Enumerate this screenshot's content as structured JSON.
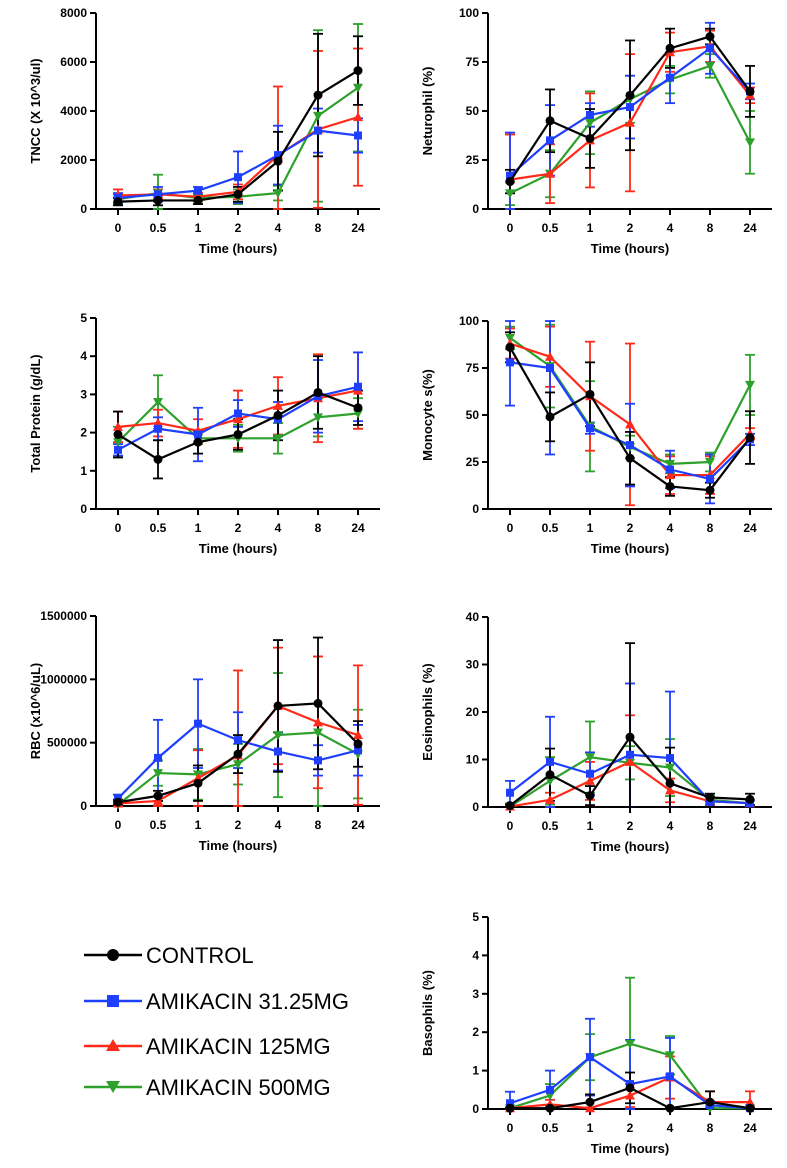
{
  "figure": {
    "series_names": [
      "CONTROL",
      "AMIKACIN 31.25MG",
      "AMIKACIN 125MG",
      "AMIKACIN 500MG"
    ],
    "series_colors": [
      "#000000",
      "#1f3fff",
      "#ff2a1a",
      "#2ea02c"
    ],
    "series_markers": [
      "circle",
      "square",
      "triangle-up",
      "triangle-down"
    ]
  },
  "legend": {
    "items": [
      {
        "label": "CONTROL",
        "color": "#000000",
        "marker": "circle"
      },
      {
        "label": "AMIKACIN 31.25MG",
        "color": "#1f3fff",
        "marker": "square"
      },
      {
        "label": "AMIKACIN 125MG",
        "color": "#ff2a1a",
        "marker": "triangle-up"
      },
      {
        "label": "AMIKACIN 500MG",
        "color": "#2ea02c",
        "marker": "triangle-down"
      }
    ]
  },
  "chart_data": [
    {
      "id": "tncc",
      "type": "line",
      "ylabel": "TNCC (X 10^3/ul)",
      "xlabel": "Time (hours)",
      "categories": [
        "0",
        "0.5",
        "1",
        "2",
        "4",
        "8",
        "24"
      ],
      "ylim": [
        0,
        8000
      ],
      "yticks": [
        0,
        2000,
        4000,
        6000,
        8000
      ],
      "ytick_labels": [
        "0",
        "2000",
        "4000",
        "6000",
        "8000"
      ],
      "series": [
        {
          "name": "CONTROL",
          "values": [
            300,
            350,
            350,
            600,
            1950,
            4650,
            5650
          ],
          "err": [
            150,
            200,
            150,
            300,
            1200,
            2500,
            1400
          ]
        },
        {
          "name": "AMIKACIN 31.25MG",
          "values": [
            450,
            600,
            750,
            1300,
            2200,
            3200,
            3000
          ],
          "err": [
            200,
            300,
            150,
            1050,
            1200,
            900,
            700
          ]
        },
        {
          "name": "AMIKACIN 125MG",
          "values": [
            550,
            600,
            500,
            700,
            2200,
            3250,
            3750
          ],
          "err": [
            250,
            200,
            150,
            300,
            2800,
            3200,
            2800
          ]
        },
        {
          "name": "AMIKACIN 500MG",
          "values": [
            400,
            650,
            450,
            500,
            650,
            3800,
            4950
          ],
          "err": [
            200,
            750,
            150,
            300,
            300,
            3500,
            2600
          ]
        }
      ]
    },
    {
      "id": "neutrophil",
      "type": "line",
      "ylabel": "Neturophil (%)",
      "xlabel": "Time (hours)",
      "categories": [
        "0",
        "0.5",
        "1",
        "2",
        "4",
        "8",
        "24"
      ],
      "ylim": [
        0,
        100
      ],
      "yticks": [
        0,
        25,
        50,
        75,
        100
      ],
      "ytick_labels": [
        "0",
        "25",
        "50",
        "75",
        "100"
      ],
      "series": [
        {
          "name": "CONTROL",
          "values": [
            14,
            45,
            36,
            58,
            82,
            88,
            60
          ],
          "err": [
            6,
            16,
            15,
            28,
            10,
            4,
            13
          ]
        },
        {
          "name": "AMIKACIN 31.25MG",
          "values": [
            17,
            35,
            48,
            52,
            67,
            82,
            60
          ],
          "err": [
            22,
            18,
            6,
            16,
            13,
            13,
            4
          ]
        },
        {
          "name": "AMIKACIN 125MG",
          "values": [
            15,
            18,
            35,
            44,
            80,
            83,
            58
          ],
          "err": [
            23,
            15,
            24,
            35,
            10,
            8,
            4
          ]
        },
        {
          "name": "AMIKACIN 500MG",
          "values": [
            8,
            18,
            44,
            56,
            66,
            73,
            34
          ],
          "err": [
            6,
            12,
            16,
            12,
            7,
            6,
            16
          ]
        }
      ]
    },
    {
      "id": "protein",
      "type": "line",
      "ylabel": "Total Protein (g/dL)",
      "xlabel": "Time (hours)",
      "categories": [
        "0",
        "0.5",
        "1",
        "2",
        "4",
        "8",
        "24"
      ],
      "ylim": [
        0,
        5
      ],
      "yticks": [
        0,
        1,
        2,
        3,
        4,
        5
      ],
      "ytick_labels": [
        "0",
        "1",
        "2",
        "3",
        "4",
        "5"
      ],
      "series": [
        {
          "name": "CONTROL",
          "values": [
            1.95,
            1.3,
            1.75,
            1.95,
            2.45,
            3.05,
            2.65
          ],
          "err": [
            0.6,
            0.5,
            0.3,
            0.4,
            0.65,
            0.95,
            0.45
          ]
        },
        {
          "name": "AMIKACIN 31.25MG",
          "values": [
            1.55,
            2.1,
            1.95,
            2.5,
            2.35,
            2.95,
            3.2
          ],
          "err": [
            0.15,
            0.3,
            0.7,
            0.35,
            0.45,
            0.95,
            0.9
          ]
        },
        {
          "name": "AMIKACIN 125MG",
          "values": [
            2.15,
            2.25,
            2.05,
            2.35,
            2.7,
            2.9,
            3.1
          ],
          "err": [
            0.4,
            0.35,
            0.3,
            0.75,
            0.75,
            1.15,
            1.0
          ]
        },
        {
          "name": "AMIKACIN 500MG",
          "values": [
            1.75,
            2.8,
            1.85,
            1.85,
            1.85,
            2.4,
            2.5
          ],
          "err": [
            0.4,
            0.7,
            0.15,
            0.35,
            0.4,
            0.5,
            0.4
          ]
        }
      ]
    },
    {
      "id": "monocyte",
      "type": "line",
      "ylabel": "Monocyte s(%)",
      "xlabel": "Time (hours)",
      "categories": [
        "0",
        "0.5",
        "1",
        "2",
        "4",
        "8",
        "24"
      ],
      "ylim": [
        0,
        100
      ],
      "yticks": [
        0,
        25,
        50,
        75,
        100
      ],
      "ytick_labels": [
        "0",
        "25",
        "50",
        "75",
        "100"
      ],
      "series": [
        {
          "name": "CONTROL",
          "values": [
            86,
            49,
            61,
            27,
            12,
            10,
            38
          ],
          "err": [
            8,
            13,
            17,
            14,
            5,
            4,
            14
          ]
        },
        {
          "name": "AMIKACIN 31.25MG",
          "values": [
            78,
            75,
            43,
            34,
            21,
            16,
            37
          ],
          "err": [
            23,
            46,
            3,
            22,
            10,
            13,
            3
          ]
        },
        {
          "name": "AMIKACIN 125MG",
          "values": [
            88,
            81,
            60,
            45,
            18,
            18,
            40
          ],
          "err": [
            8,
            16,
            29,
            43,
            10,
            10,
            3
          ]
        },
        {
          "name": "AMIKACIN 500MG",
          "values": [
            91,
            76,
            44,
            33,
            24,
            25,
            66
          ],
          "err": [
            6,
            22,
            24,
            6,
            5,
            5,
            16
          ]
        }
      ]
    },
    {
      "id": "rbc",
      "type": "line",
      "ylabel": "RBC (x10^6/uL)",
      "xlabel": "Time (hours)",
      "categories": [
        "0",
        "0.5",
        "1",
        "2",
        "4",
        "8",
        "24"
      ],
      "ylim": [
        0,
        1500000
      ],
      "yticks": [
        0,
        500000,
        1000000,
        1500000
      ],
      "ytick_labels": [
        "0",
        "500000",
        "1000000",
        "1500000"
      ],
      "series": [
        {
          "name": "CONTROL",
          "values": [
            30000,
            80000,
            180000,
            410000,
            790000,
            810000,
            490000
          ],
          "err": [
            20000,
            40000,
            140000,
            150000,
            520000,
            520000,
            180000
          ]
        },
        {
          "name": "AMIKACIN 31.25MG",
          "values": [
            60000,
            380000,
            650000,
            520000,
            430000,
            360000,
            440000
          ],
          "err": [
            30000,
            300000,
            350000,
            220000,
            150000,
            120000,
            200000
          ]
        },
        {
          "name": "AMIKACIN 125MG",
          "values": [
            20000,
            40000,
            220000,
            400000,
            790000,
            660000,
            560000
          ],
          "err": [
            20000,
            40000,
            220000,
            670000,
            460000,
            520000,
            550000
          ]
        },
        {
          "name": "AMIKACIN 500MG",
          "values": [
            10000,
            260000,
            250000,
            330000,
            560000,
            580000,
            410000
          ],
          "err": [
            10000,
            100000,
            200000,
            160000,
            490000,
            600000,
            350000
          ]
        }
      ]
    },
    {
      "id": "eosinophils",
      "type": "line",
      "ylabel": "Eosinophils (%)",
      "xlabel": "Time (hours)",
      "categories": [
        "0",
        "0.5",
        "1",
        "2",
        "4",
        "8",
        "24"
      ],
      "ylim": [
        0,
        40
      ],
      "yticks": [
        0,
        10,
        20,
        30,
        40
      ],
      "ytick_labels": [
        "0",
        "10",
        "20",
        "30",
        "40"
      ],
      "series": [
        {
          "name": "CONTROL",
          "values": [
            0.3,
            6.8,
            2.4,
            14.7,
            5.0,
            2.0,
            1.6
          ],
          "err": [
            0.3,
            5.5,
            2.0,
            19.8,
            7.5,
            0.8,
            1.2
          ]
        },
        {
          "name": "AMIKACIN 31.25MG",
          "values": [
            3.0,
            9.5,
            7.0,
            11.0,
            10.3,
            1.2,
            0.8
          ],
          "err": [
            2.5,
            9.5,
            4.5,
            15.0,
            14.0,
            0.8,
            0.6
          ]
        },
        {
          "name": "AMIKACIN 125MG",
          "values": [
            0.1,
            1.5,
            5.5,
            9.5,
            3.5,
            1.2,
            0.8
          ],
          "err": [
            0.1,
            1.5,
            4.0,
            9.8,
            2.5,
            0.8,
            0.6
          ]
        },
        {
          "name": "AMIKACIN 500MG",
          "values": [
            0.1,
            5.5,
            10.5,
            9.3,
            8.3,
            1.5,
            0.8
          ],
          "err": [
            0.1,
            5.0,
            7.5,
            3.5,
            6.0,
            0.8,
            0.6
          ]
        }
      ]
    },
    {
      "id": "basophils",
      "type": "line",
      "ylabel": "Basophils (%)",
      "xlabel": "Time (hours)",
      "categories": [
        "0",
        "0.5",
        "1",
        "2",
        "4",
        "8",
        "24"
      ],
      "ylim": [
        0,
        5
      ],
      "yticks": [
        0,
        1,
        2,
        3,
        4,
        5
      ],
      "ytick_labels": [
        "0",
        "1",
        "2",
        "3",
        "4",
        "5"
      ],
      "series": [
        {
          "name": "CONTROL",
          "values": [
            0.02,
            0.02,
            0.18,
            0.55,
            0.02,
            0.18,
            0.02
          ],
          "err": [
            0.02,
            0.02,
            0.2,
            0.4,
            0.02,
            0.28,
            0.02
          ]
        },
        {
          "name": "AMIKACIN 31.25MG",
          "values": [
            0.15,
            0.5,
            1.35,
            0.65,
            0.85,
            0.1,
            0.02
          ],
          "err": [
            0.3,
            0.5,
            1.0,
            1.15,
            1.0,
            0.1,
            0.02
          ]
        },
        {
          "name": "AMIKACIN 125MG",
          "values": [
            0.02,
            0.12,
            0.02,
            0.35,
            0.82,
            0.18,
            0.18
          ],
          "err": [
            0.02,
            0.12,
            0.02,
            0.3,
            0.55,
            0.28,
            0.28
          ]
        },
        {
          "name": "AMIKACIN 500MG",
          "values": [
            0.02,
            0.35,
            1.35,
            1.7,
            1.4,
            0.02,
            0.02
          ],
          "err": [
            0.02,
            0.3,
            0.6,
            1.72,
            0.5,
            0.02,
            0.02
          ]
        }
      ]
    }
  ]
}
